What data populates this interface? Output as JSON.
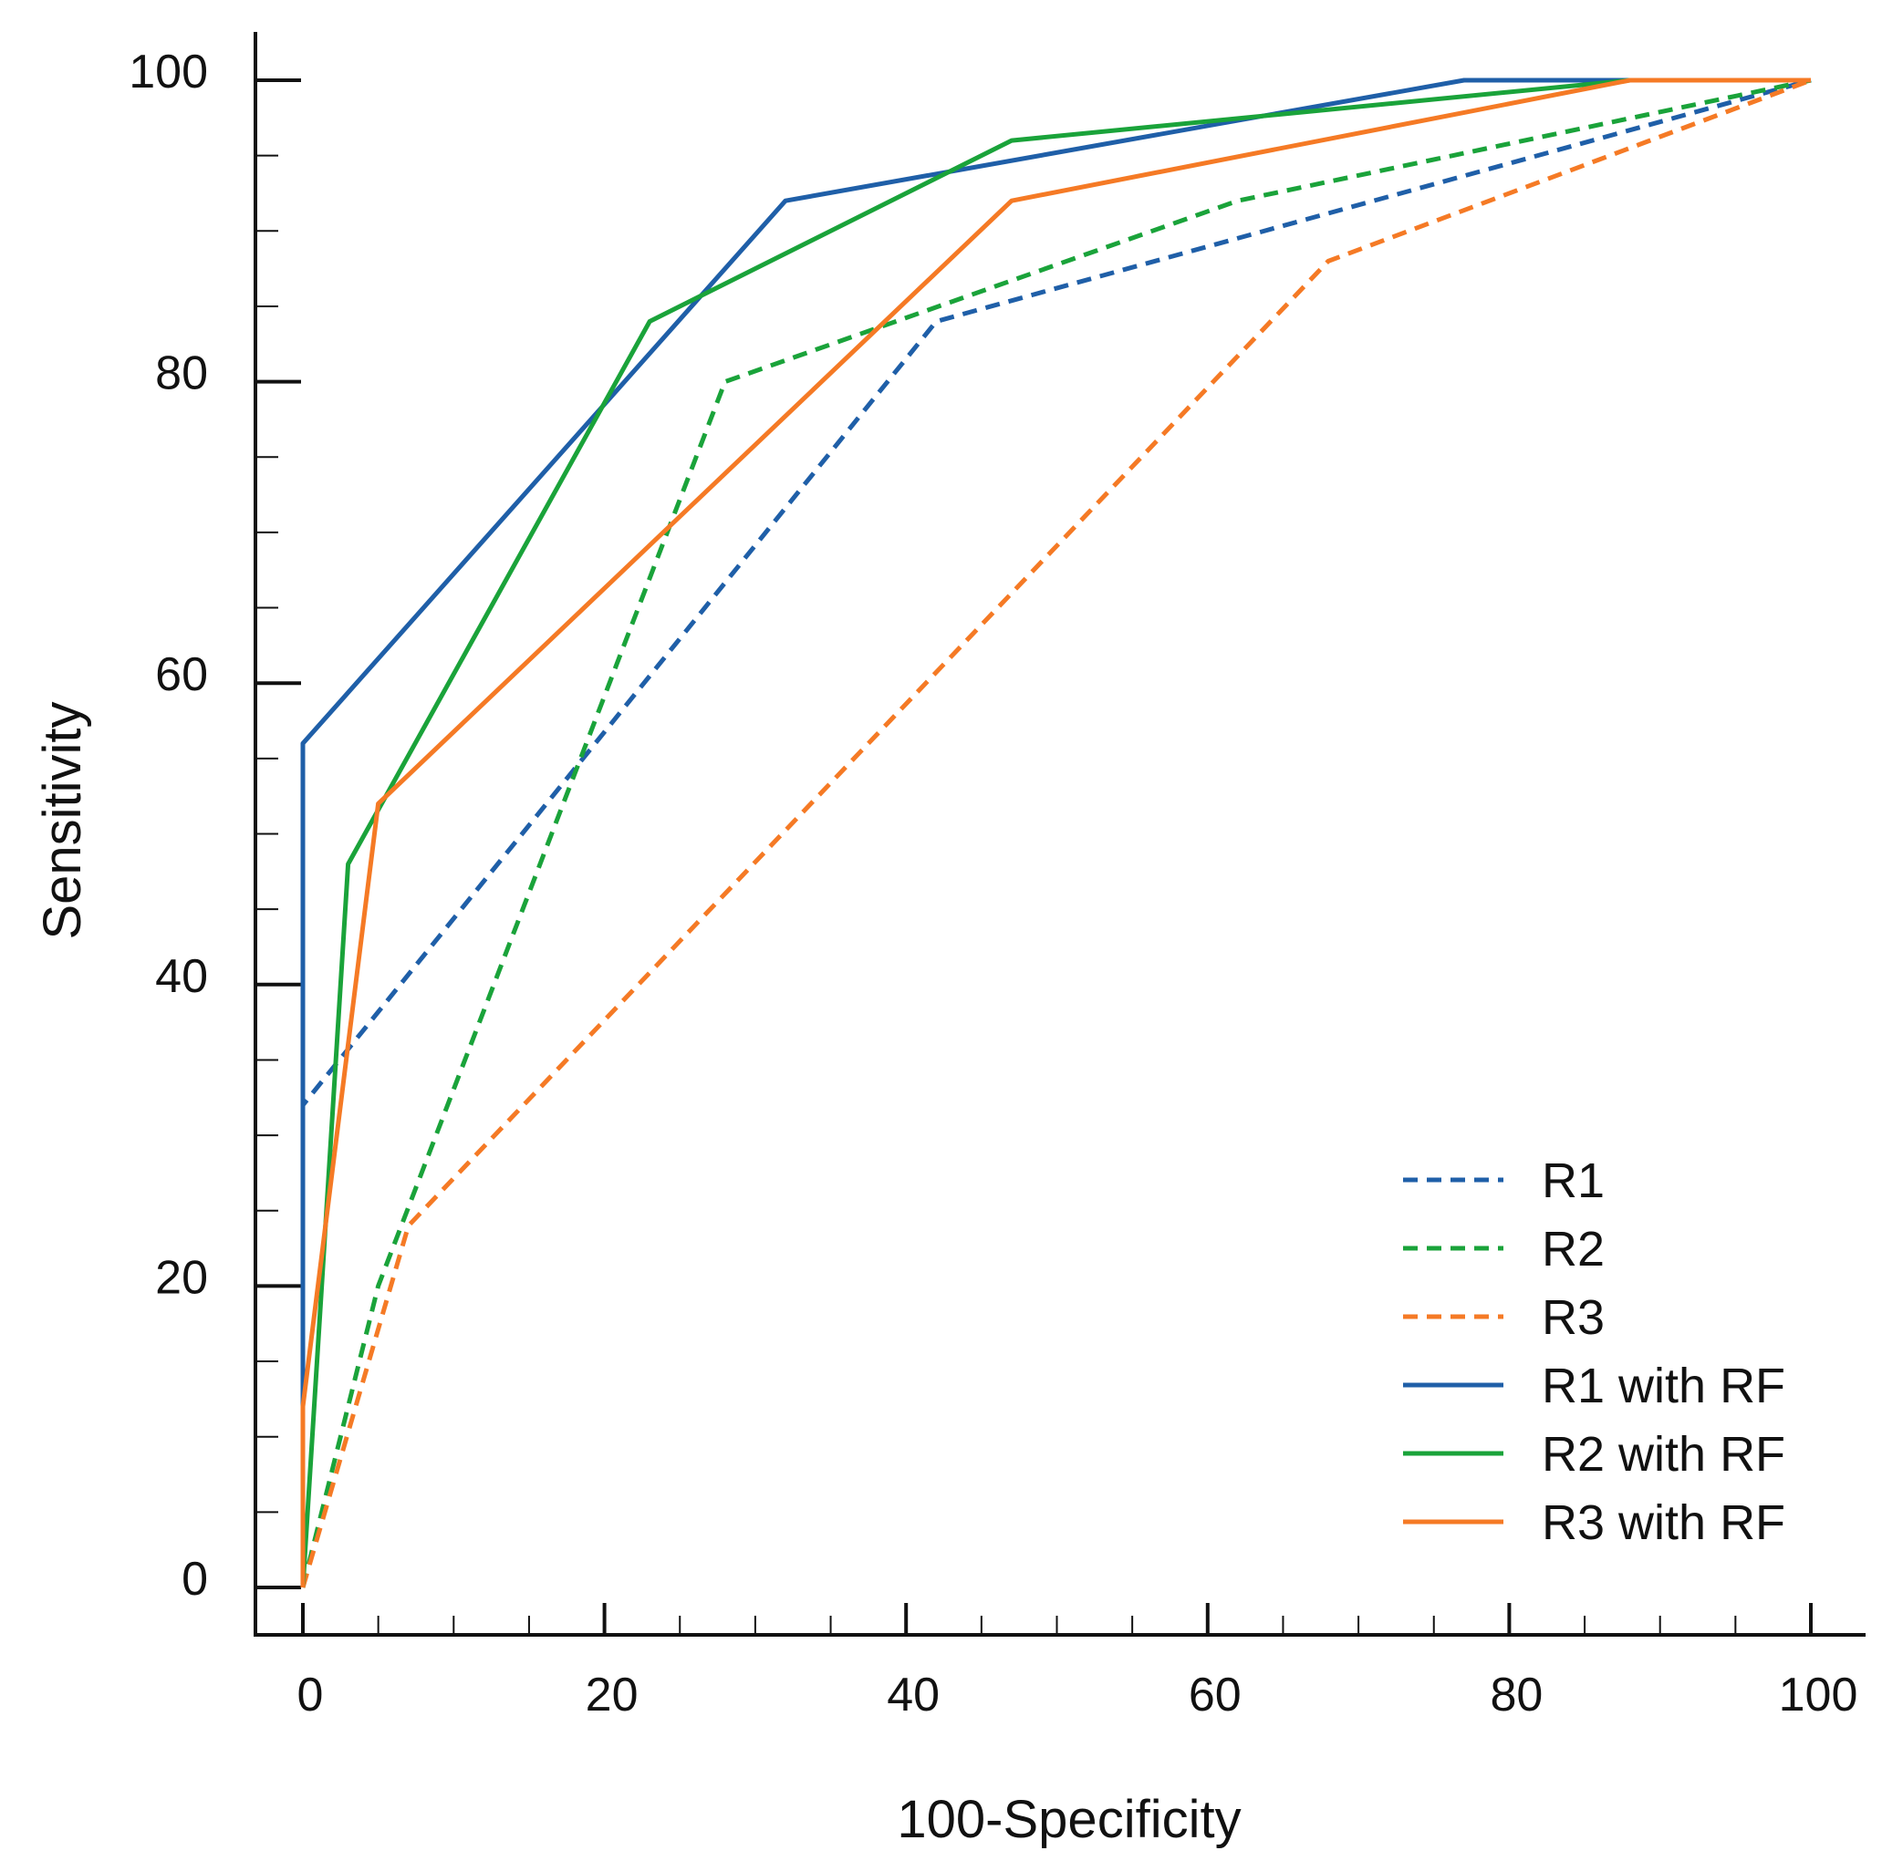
{
  "chart_data": {
    "type": "line",
    "title": "",
    "xlabel": "100-Specificity",
    "ylabel": "Sensitivity",
    "xlim": [
      0,
      100
    ],
    "ylim": [
      0,
      100
    ],
    "xticks": [
      0,
      20,
      40,
      60,
      80,
      100
    ],
    "yticks": [
      0,
      20,
      40,
      60,
      80,
      100
    ],
    "grid": false,
    "legend_position": "bottom-right",
    "series": [
      {
        "name": "R1",
        "color": "#1f5fa8",
        "style": "dashed",
        "points": [
          [
            0,
            0
          ],
          [
            0,
            32
          ],
          [
            42,
            84
          ],
          [
            100,
            100
          ]
        ]
      },
      {
        "name": "R2",
        "color": "#1aa33a",
        "style": "dashed",
        "points": [
          [
            0,
            0
          ],
          [
            5,
            20
          ],
          [
            28,
            80
          ],
          [
            62,
            92
          ],
          [
            100,
            100
          ]
        ]
      },
      {
        "name": "R3",
        "color": "#f57a25",
        "style": "dashed",
        "points": [
          [
            0,
            0
          ],
          [
            7,
            24
          ],
          [
            68,
            88
          ],
          [
            100,
            100
          ]
        ]
      },
      {
        "name": "R1 with RF",
        "color": "#1f5fa8",
        "style": "solid",
        "points": [
          [
            0,
            12
          ],
          [
            0,
            56
          ],
          [
            32,
            92
          ],
          [
            77,
            100
          ],
          [
            100,
            100
          ]
        ]
      },
      {
        "name": "R2 with RF",
        "color": "#1aa33a",
        "style": "solid",
        "points": [
          [
            0,
            0
          ],
          [
            3,
            48
          ],
          [
            23,
            84
          ],
          [
            47,
            96
          ],
          [
            88,
            100
          ],
          [
            100,
            100
          ]
        ]
      },
      {
        "name": "R3 with RF",
        "color": "#f57a25",
        "style": "solid",
        "points": [
          [
            0,
            0
          ],
          [
            0,
            12
          ],
          [
            5,
            52
          ],
          [
            47,
            92
          ],
          [
            88,
            100
          ],
          [
            100,
            100
          ]
        ]
      }
    ]
  }
}
